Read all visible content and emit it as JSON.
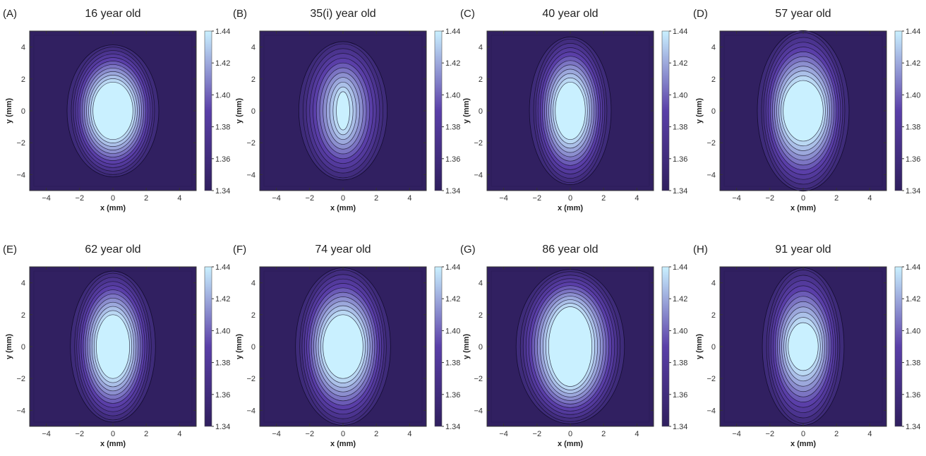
{
  "figure": {
    "panel_count": 8,
    "colormap": {
      "low": "#2f1f5e",
      "mid": "#5a3fa8",
      "high": "#c9f0ff"
    }
  },
  "chart_data": [
    {
      "type": "heatmap",
      "panel_label": "(A)",
      "title": "16 year old",
      "xlabel": "x (mm)",
      "ylabel": "y (mm)",
      "xlim": [
        -5,
        5
      ],
      "ylim": [
        -5,
        5
      ],
      "x_ticks": [
        -4,
        -2,
        0,
        2,
        4
      ],
      "y_ticks": [
        -4,
        -2,
        0,
        2,
        4
      ],
      "colorbar": {
        "min": 1.34,
        "max": 1.44,
        "ticks": [
          1.34,
          1.36,
          1.38,
          1.4,
          1.42,
          1.44
        ]
      },
      "lens": {
        "center_x": 0,
        "center_y": 0,
        "semi_axis_x": 2.5,
        "semi_axis_y": 4
      },
      "plateau": {
        "semi_axis_x": 1.2,
        "semi_axis_y": 1.8,
        "level": 1.44
      }
    },
    {
      "type": "heatmap",
      "panel_label": "(B)",
      "title": "35(i) year old",
      "xlabel": "x (mm)",
      "ylabel": "y (mm)",
      "xlim": [
        -5,
        5
      ],
      "ylim": [
        -5,
        5
      ],
      "x_ticks": [
        -4,
        -2,
        0,
        2,
        4
      ],
      "y_ticks": [
        -4,
        -2,
        0,
        2,
        4
      ],
      "colorbar": {
        "min": 1.34,
        "max": 1.44,
        "ticks": [
          1.34,
          1.36,
          1.38,
          1.4,
          1.42,
          1.44
        ]
      },
      "lens": {
        "center_x": 0,
        "center_y": 0,
        "semi_axis_x": 2.4,
        "semi_axis_y": 4.2
      },
      "plateau": {
        "semi_axis_x": 0.4,
        "semi_axis_y": 1.2,
        "level": 1.44
      }
    },
    {
      "type": "heatmap",
      "panel_label": "(C)",
      "title": "40 year old",
      "xlabel": "x (mm)",
      "ylabel": "y (mm)",
      "xlim": [
        -5,
        5
      ],
      "ylim": [
        -5,
        5
      ],
      "x_ticks": [
        -4,
        -2,
        0,
        2,
        4
      ],
      "y_ticks": [
        -4,
        -2,
        0,
        2,
        4
      ],
      "colorbar": {
        "min": 1.34,
        "max": 1.44,
        "ticks": [
          1.34,
          1.36,
          1.38,
          1.4,
          1.42,
          1.44
        ]
      },
      "lens": {
        "center_x": 0,
        "center_y": 0,
        "semi_axis_x": 2.2,
        "semi_axis_y": 4.5
      },
      "plateau": {
        "semi_axis_x": 0.9,
        "semi_axis_y": 1.8,
        "level": 1.44
      }
    },
    {
      "type": "heatmap",
      "panel_label": "(D)",
      "title": "57 year old",
      "xlabel": "x (mm)",
      "ylabel": "y (mm)",
      "xlim": [
        -5,
        5
      ],
      "ylim": [
        -5,
        5
      ],
      "x_ticks": [
        -4,
        -2,
        0,
        2,
        4
      ],
      "y_ticks": [
        -4,
        -2,
        0,
        2,
        4
      ],
      "colorbar": {
        "min": 1.34,
        "max": 1.44,
        "ticks": [
          1.34,
          1.36,
          1.38,
          1.4,
          1.42,
          1.44
        ]
      },
      "lens": {
        "center_x": 0,
        "center_y": 0,
        "semi_axis_x": 2.5,
        "semi_axis_y": 4.9
      },
      "plateau": {
        "semi_axis_x": 1.2,
        "semi_axis_y": 1.9,
        "level": 1.44
      }
    },
    {
      "type": "heatmap",
      "panel_label": "(E)",
      "title": "62 year old",
      "xlabel": "x (mm)",
      "ylabel": "y (mm)",
      "xlim": [
        -5,
        5
      ],
      "ylim": [
        -5,
        5
      ],
      "x_ticks": [
        -4,
        -2,
        0,
        2,
        4
      ],
      "y_ticks": [
        -4,
        -2,
        0,
        2,
        4
      ],
      "colorbar": {
        "min": 1.34,
        "max": 1.44,
        "ticks": [
          1.34,
          1.36,
          1.38,
          1.4,
          1.42,
          1.44
        ]
      },
      "lens": {
        "center_x": 0,
        "center_y": 0,
        "semi_axis_x": 2.3,
        "semi_axis_y": 4.6
      },
      "plateau": {
        "semi_axis_x": 1,
        "semi_axis_y": 2,
        "level": 1.44
      }
    },
    {
      "type": "heatmap",
      "panel_label": "(F)",
      "title": "74 year old",
      "xlabel": "x (mm)",
      "ylabel": "y (mm)",
      "xlim": [
        -5,
        5
      ],
      "ylim": [
        -5,
        5
      ],
      "x_ticks": [
        -4,
        -2,
        0,
        2,
        4
      ],
      "y_ticks": [
        -4,
        -2,
        0,
        2,
        4
      ],
      "colorbar": {
        "min": 1.34,
        "max": 1.44,
        "ticks": [
          1.34,
          1.36,
          1.38,
          1.4,
          1.42,
          1.44
        ]
      },
      "lens": {
        "center_x": 0,
        "center_y": 0,
        "semi_axis_x": 2.6,
        "semi_axis_y": 4.8
      },
      "plateau": {
        "semi_axis_x": 1.2,
        "semi_axis_y": 2,
        "level": 1.44
      }
    },
    {
      "type": "heatmap",
      "panel_label": "(G)",
      "title": "86 year old",
      "xlabel": "x (mm)",
      "ylabel": "y (mm)",
      "xlim": [
        -5,
        5
      ],
      "ylim": [
        -5,
        5
      ],
      "x_ticks": [
        -4,
        -2,
        0,
        2,
        4
      ],
      "y_ticks": [
        -4,
        -2,
        0,
        2,
        4
      ],
      "colorbar": {
        "min": 1.34,
        "max": 1.44,
        "ticks": [
          1.34,
          1.36,
          1.38,
          1.4,
          1.42,
          1.44
        ]
      },
      "lens": {
        "center_x": 0,
        "center_y": 0,
        "semi_axis_x": 3,
        "semi_axis_y": 4.7
      },
      "plateau": {
        "semi_axis_x": 1.3,
        "semi_axis_y": 2.5,
        "level": 1.44
      }
    },
    {
      "type": "heatmap",
      "panel_label": "(H)",
      "title": "91 year old",
      "xlabel": "x (mm)",
      "ylabel": "y (mm)",
      "xlim": [
        -5,
        5
      ],
      "ylim": [
        -5,
        5
      ],
      "x_ticks": [
        -4,
        -2,
        0,
        2,
        4
      ],
      "y_ticks": [
        -4,
        -2,
        0,
        2,
        4
      ],
      "colorbar": {
        "min": 1.34,
        "max": 1.44,
        "ticks": [
          1.34,
          1.36,
          1.38,
          1.4,
          1.42,
          1.44
        ]
      },
      "lens": {
        "center_x": 0,
        "center_y": 0,
        "semi_axis_x": 2.2,
        "semi_axis_y": 4.8
      },
      "plateau": {
        "semi_axis_x": 0.9,
        "semi_axis_y": 1.5,
        "level": 1.44
      }
    }
  ]
}
